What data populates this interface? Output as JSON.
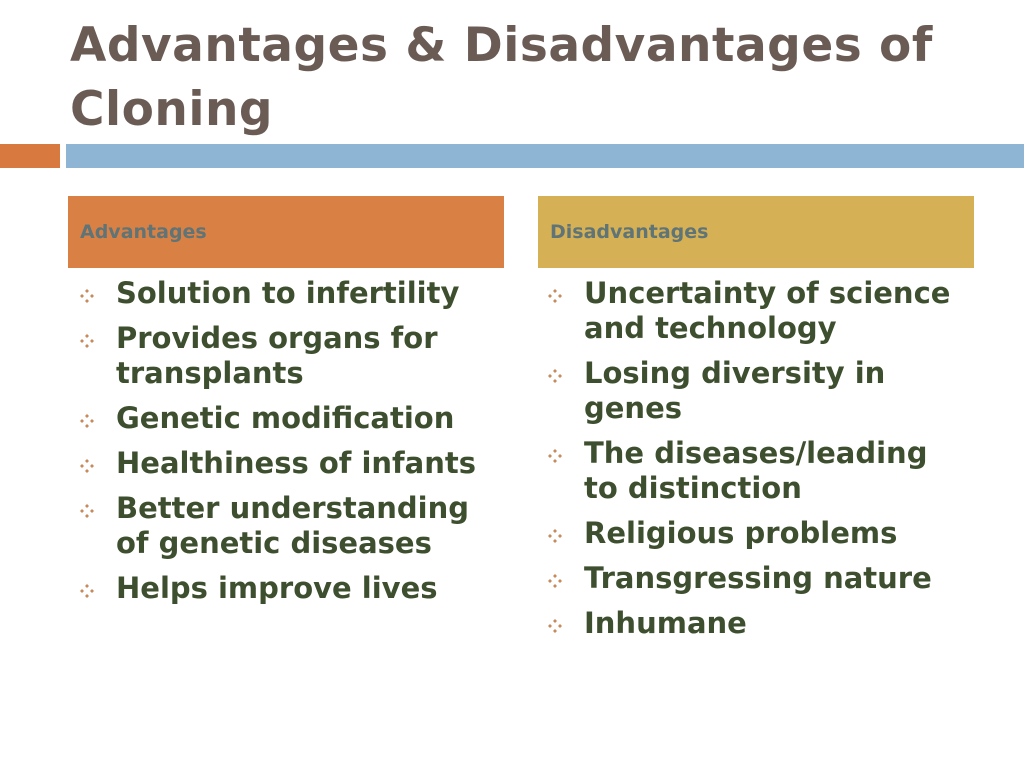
{
  "slide": {
    "title": "Advantages & Disadvantages  of Cloning"
  },
  "advantages": {
    "header": "Advantages",
    "items": [
      "Solution to infertility",
      "Provides organs for transplants",
      "Genetic modification",
      "Healthiness of infants",
      "Better understanding of genetic diseases",
      "Helps improve lives"
    ]
  },
  "disadvantages": {
    "header": "Disadvantages",
    "items": [
      "Uncertainty of science and technology",
      "Losing diversity in genes",
      "The diseases/leading to distinction",
      "Religious problems",
      "Transgressing nature",
      "Inhumane"
    ]
  },
  "colors": {
    "title_text": "#6b5b55",
    "accent_orange": "#d8793f",
    "accent_blue": "#8eb5d3",
    "header_gold": "#d6b055",
    "bullet_text": "#3d4f2e"
  },
  "icons": {
    "bullet": "four-diamond-bullet-icon"
  }
}
